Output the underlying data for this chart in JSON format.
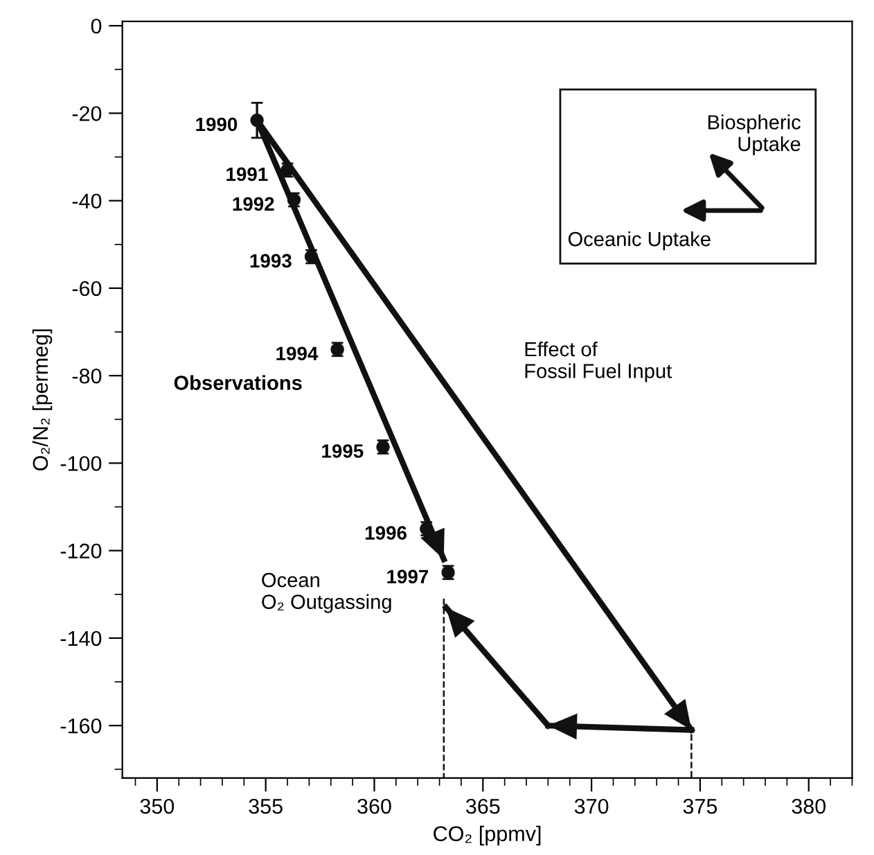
{
  "chart_data": {
    "type": "scatter",
    "xlabel": "CO₂ [ppmv]",
    "ylabel": "O₂/N₂ [permeg]",
    "xlim": [
      348.4,
      382
    ],
    "ylim": [
      -172,
      1
    ],
    "xticks": [
      350,
      355,
      360,
      365,
      370,
      375,
      380
    ],
    "yticks": [
      0,
      -20,
      -40,
      -60,
      -80,
      -100,
      -120,
      -140,
      -160
    ],
    "grid": false,
    "series": [
      {
        "color": "#111111",
        "marker": "circle",
        "x": [
          354.6,
          356.0,
          356.3,
          357.1,
          358.3,
          360.4,
          362.4,
          363.4
        ],
        "values": [
          -21.6,
          -33,
          -39.8,
          -52.8,
          -74,
          -96.3,
          -115,
          -125
        ],
        "errors": [
          4,
          1.5,
          1.5,
          1.5,
          1.5,
          1.5,
          1.5,
          1.5
        ]
      },
      {
        "type": "line",
        "color": "#111111",
        "marker": "none",
        "line_style": "solid",
        "x": [
          354.6,
          363.2
        ],
        "values": [
          -21.6,
          -122
        ]
      },
      {
        "type": "line",
        "color": "#111111",
        "marker": "none",
        "line_style": "solid",
        "x": [
          354.6,
          374.6
        ],
        "values": [
          -21.6,
          -161
        ]
      },
      {
        "type": "line",
        "color": "#111111",
        "marker": "none",
        "line_style": "solid",
        "x": [
          374.6,
          368
        ],
        "values": [
          -161,
          -160
        ]
      },
      {
        "type": "line",
        "color": "#111111",
        "marker": "none",
        "line_style": "solid",
        "x": [
          368,
          363.3
        ],
        "values": [
          -160,
          -133
        ]
      },
      {
        "type": "line",
        "color": "#111111",
        "marker": "none",
        "line_style": "dashed",
        "x": [
          363.2,
          363.2
        ],
        "values": [
          -131,
          -172
        ]
      },
      {
        "type": "line",
        "color": "#111111",
        "marker": "none",
        "line_style": "dashed",
        "x": [
          374.6,
          374.6
        ],
        "values": [
          -162,
          -172
        ]
      }
    ],
    "annotations": [
      {
        "text": "1990",
        "x": 354.6,
        "y": -21.6
      },
      {
        "text": "1991",
        "x": 356.0,
        "y": -33
      },
      {
        "text": "1992",
        "x": 356.3,
        "y": -39.8
      },
      {
        "text": "1993",
        "x": 357.1,
        "y": -52.8
      },
      {
        "text": "1994",
        "x": 358.3,
        "y": -74
      },
      {
        "text": "1995",
        "x": 360.4,
        "y": -96.3
      },
      {
        "text": "1996",
        "x": 362.4,
        "y": -115
      },
      {
        "text": "1997",
        "x": 363.4,
        "y": -125
      },
      "Observations",
      "Effect of\nFossil Fuel Input",
      "Ocean\nO₂ Outgassing",
      "Biospheric\nUptake",
      "Oceanic Uptake"
    ]
  }
}
